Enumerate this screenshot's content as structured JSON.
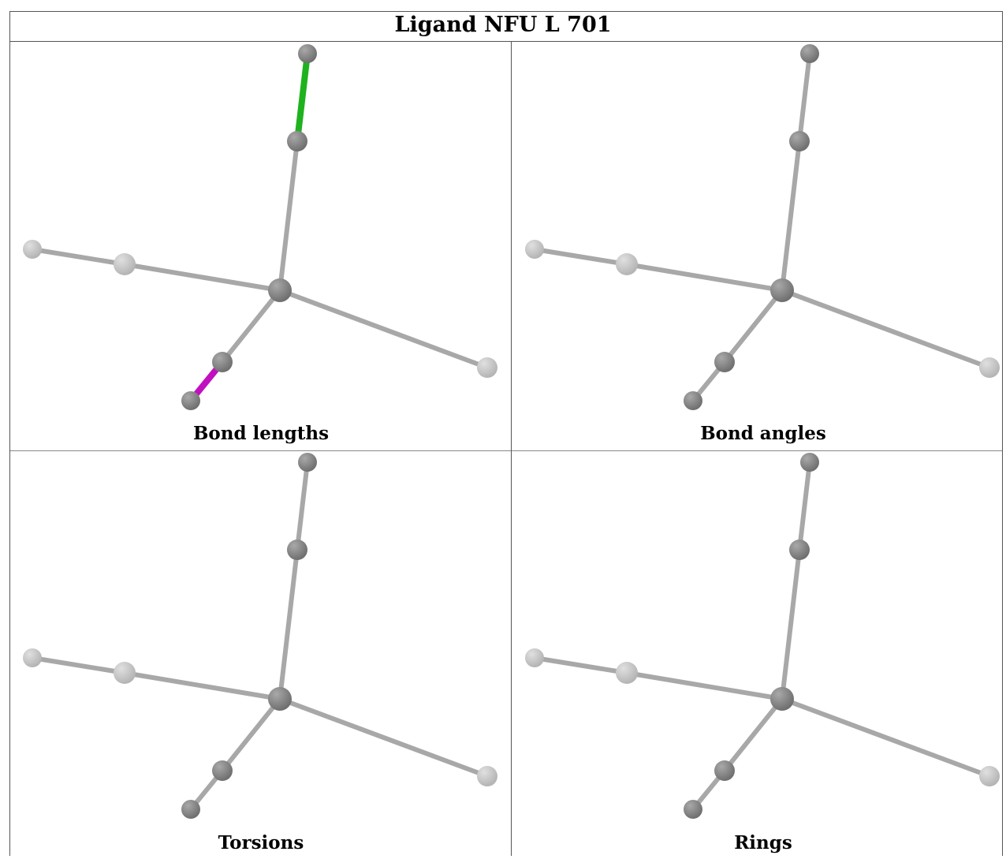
{
  "title": "Ligand NFU L 701",
  "panels": [
    {
      "caption": "Bond lengths",
      "highlights": [
        {
          "from": 0,
          "to": 1,
          "color": "#1fb21f"
        },
        {
          "from": 7,
          "to": 8,
          "color": "#c010c0"
        }
      ]
    },
    {
      "caption": "Bond angles",
      "highlights": []
    },
    {
      "caption": "Torsions",
      "highlights": []
    },
    {
      "caption": "Rings",
      "highlights": []
    }
  ],
  "colors": {
    "bond": "#a8a8a8",
    "atom_dark": "#6f6f6f",
    "atom_light": "#b4b4b4"
  }
}
